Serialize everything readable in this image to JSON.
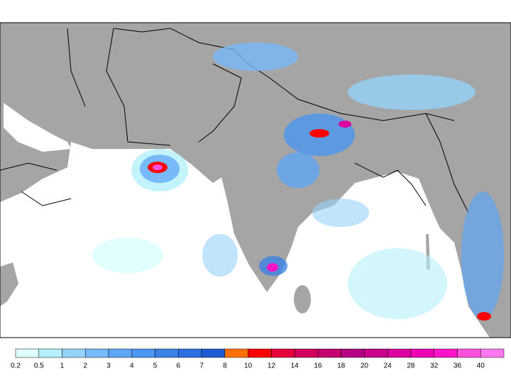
{
  "legend": {
    "items": [
      {
        "label": 0.2,
        "color": "#e1ffff"
      },
      {
        "label": 0.5,
        "color": "#b4f0fa"
      },
      {
        "label": 1,
        "color": "#96d2fa"
      },
      {
        "label": 2,
        "color": "#78b9fa"
      },
      {
        "label": 3,
        "color": "#5fa5f5"
      },
      {
        "label": 4,
        "color": "#4b96f0"
      },
      {
        "label": 5,
        "color": "#3c82e6"
      },
      {
        "label": 6,
        "color": "#2d6ee1"
      },
      {
        "label": 7,
        "color": "#1e5ad2"
      },
      {
        "label": 8,
        "color": "#ff7000"
      },
      {
        "label": 10,
        "color": "#ff0000"
      },
      {
        "label": 12,
        "color": "#e6003c"
      },
      {
        "label": 14,
        "color": "#d2005a"
      },
      {
        "label": 16,
        "color": "#c3006e"
      },
      {
        "label": 18,
        "color": "#b40082"
      },
      {
        "label": 20,
        "color": "#c8008c"
      },
      {
        "label": 24,
        "color": "#dc00a0"
      },
      {
        "label": 28,
        "color": "#f000b4"
      },
      {
        "label": 32,
        "color": "#ff14c8"
      },
      {
        "label": 36,
        "color": "#ff50dc"
      },
      {
        "label": 40,
        "color": "#ff78f0"
      }
    ]
  }
}
